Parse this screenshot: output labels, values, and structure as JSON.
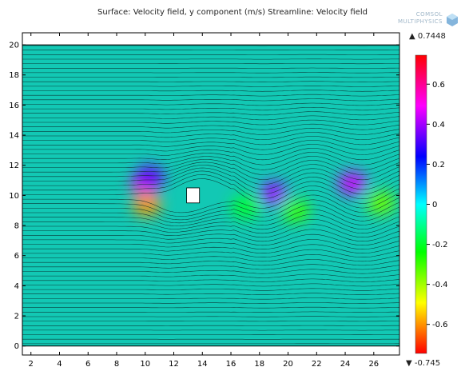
{
  "title": "Surface: Velocity field, y component (m/s)  Streamline: Velocity field",
  "logo": {
    "line1": "COMSOL",
    "line2": "MULTIPHYSICS"
  },
  "chart_data": {
    "type": "heatmap",
    "title": "Surface: Velocity field, y component (m/s)  Streamline: Velocity field",
    "xlabel": "",
    "ylabel": "",
    "xlim": [
      1.4,
      27.8
    ],
    "ylim": [
      -0.6,
      20.8
    ],
    "x_ticks": [
      2,
      4,
      6,
      8,
      10,
      12,
      14,
      16,
      18,
      20,
      22,
      24,
      26
    ],
    "y_ticks": [
      0,
      2,
      4,
      6,
      8,
      10,
      12,
      14,
      16,
      18,
      20
    ],
    "domain": {
      "x": [
        1.4,
        27.8
      ],
      "y": [
        0,
        20
      ]
    },
    "obstacle": {
      "shape": "square",
      "x": [
        12.9,
        13.8
      ],
      "y": [
        9.5,
        10.5
      ]
    },
    "colorbar": {
      "label_max": "0.7448",
      "label_min": "-0.745",
      "range": [
        -0.745,
        0.7448
      ],
      "ticks": [
        0.6,
        0.4,
        0.2,
        0,
        -0.2,
        -0.4,
        -0.6
      ],
      "colormap": [
        "#ff0000",
        "#ff00ff",
        "#0000ff",
        "#00ffff",
        "#00ff00",
        "#ffff00",
        "#ff0000"
      ]
    },
    "field_blobs": [
      {
        "x": 10.0,
        "y": 10.7,
        "value": 0.55
      },
      {
        "x": 10.1,
        "y": 9.4,
        "value": -0.6
      },
      {
        "x": 10.3,
        "y": 11.2,
        "value": 0.35
      },
      {
        "x": 19.0,
        "y": 10.1,
        "value": 0.4
      },
      {
        "x": 20.5,
        "y": 9.0,
        "value": -0.3
      },
      {
        "x": 24.5,
        "y": 10.8,
        "value": 0.45
      },
      {
        "x": 26.5,
        "y": 9.5,
        "value": -0.35
      },
      {
        "x": 17.0,
        "y": 9.2,
        "value": -0.2
      }
    ]
  }
}
